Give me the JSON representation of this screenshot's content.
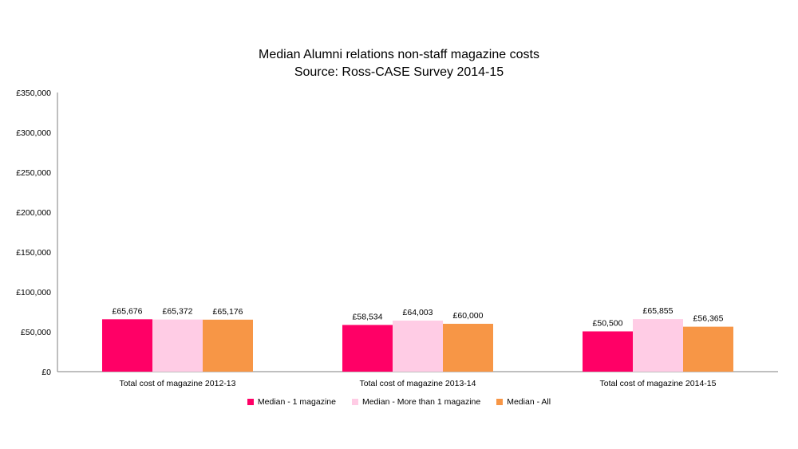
{
  "title_line1": "Median Alumni relations non-staff magazine costs",
  "title_line2": "Source: Ross-CASE Survey 2014-15",
  "chart_data": {
    "type": "bar",
    "categories": [
      "Total cost of magazine 2012-13",
      "Total cost of magazine 2013-14",
      "Total cost of magazine 2014-15"
    ],
    "series": [
      {
        "name": "Median - 1 magazine",
        "color": "#FF0066",
        "values": [
          65676,
          58534,
          50500
        ],
        "labels": [
          "£65,676",
          "£58,534",
          "£50,500"
        ]
      },
      {
        "name": "Median - More than 1 magazine",
        "color": "#FFCCE5",
        "values": [
          65372,
          64003,
          65855
        ],
        "labels": [
          "£65,372",
          "£64,003",
          "£65,855"
        ]
      },
      {
        "name": "Median - All",
        "color": "#F79646",
        "values": [
          65176,
          60000,
          56365
        ],
        "labels": [
          "£65,176",
          "£60,000",
          "£56,365"
        ]
      }
    ],
    "ylim": [
      0,
      350000
    ],
    "yticks": [
      0,
      50000,
      100000,
      150000,
      200000,
      250000,
      300000,
      350000
    ],
    "ytick_labels": [
      "£0",
      "£50,000",
      "£100,000",
      "£150,000",
      "£200,000",
      "£250,000",
      "£300,000",
      "£350,000"
    ],
    "grid": false,
    "legend_position": "bottom"
  }
}
